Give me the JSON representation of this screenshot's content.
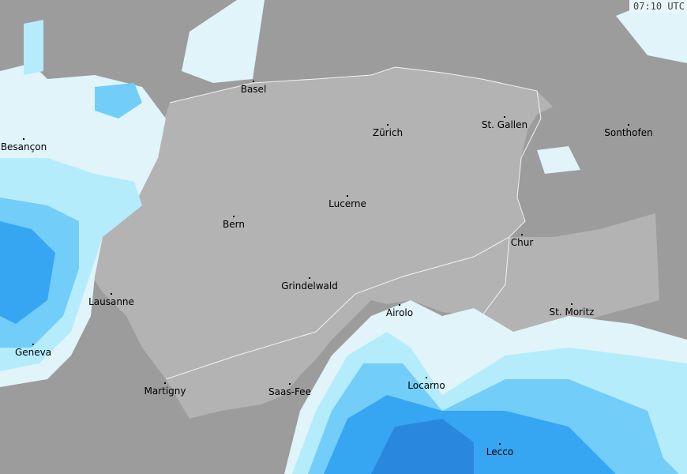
{
  "timestamp": "07:10 UTC",
  "colors": {
    "background": "#9c9c9c",
    "switzerland": "#b3b3b3",
    "precip_light": "#e0f4fa",
    "precip_low": "#b5ecfb",
    "precip_mid": "#72cdf8",
    "precip_high": "#36a6f2",
    "precip_heavy": "#2a88dc"
  },
  "cities": [
    "Basel",
    "Zürich",
    "St. Gallen",
    "Sonthofen",
    "Besançon",
    "Lucerne",
    "Bern",
    "Chur",
    "Lausanne",
    "Grindelwald",
    "Airolo",
    "St. Moritz",
    "Geneva",
    "Martigny",
    "Saas-Fee",
    "Locarno",
    "Lecco"
  ]
}
